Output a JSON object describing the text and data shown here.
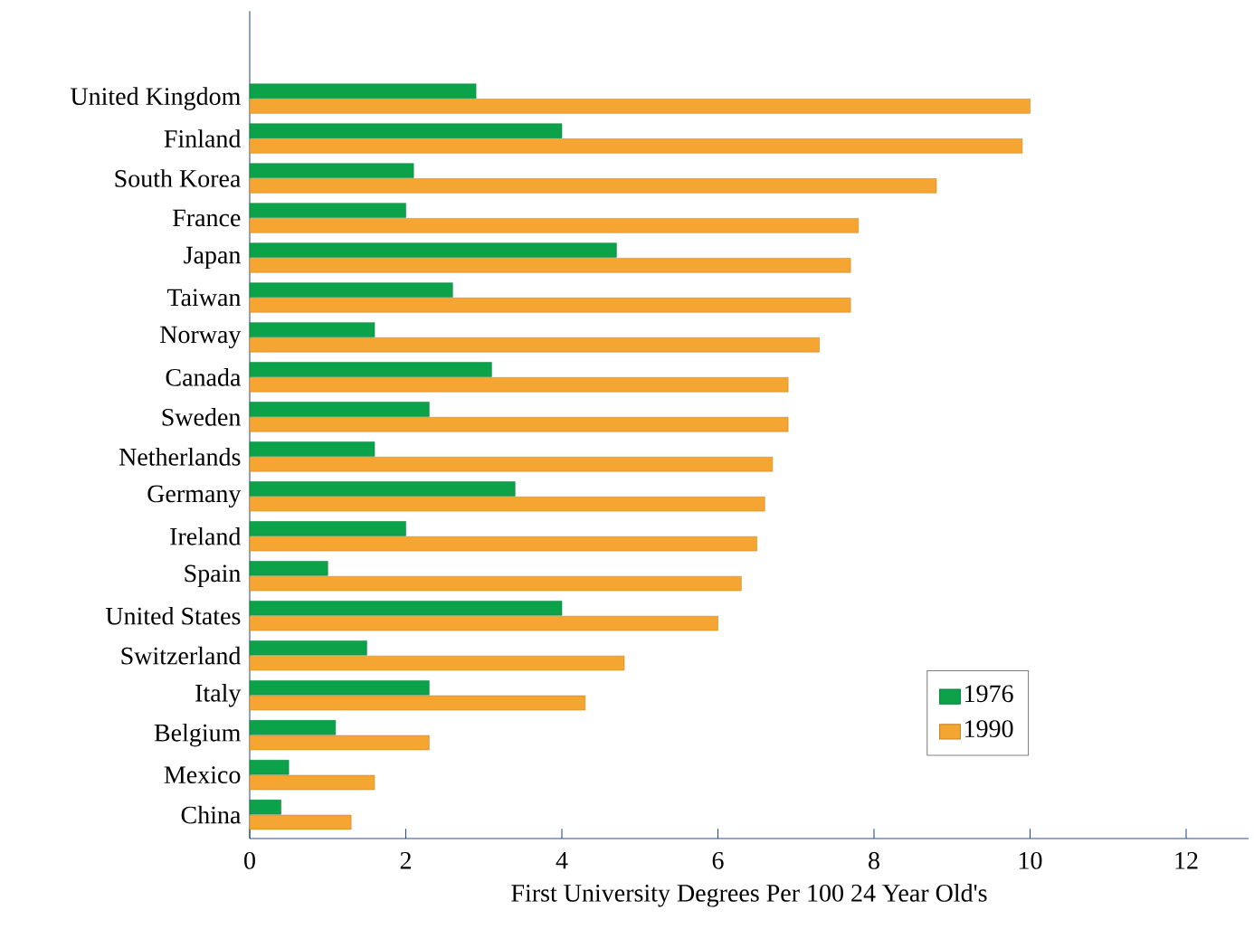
{
  "chart_data": {
    "type": "bar",
    "orientation": "horizontal",
    "xlabel": "First University Degrees Per 100 24 Year Old's",
    "categories": [
      "United Kingdom",
      "Finland",
      "South Korea",
      "France",
      "Japan",
      "Taiwan",
      "Norway",
      "Canada",
      "Sweden",
      "Netherlands",
      "Germany",
      "Ireland",
      "Spain",
      "United States",
      "Switzerland",
      "Italy",
      "Belgium",
      "Mexico",
      "China"
    ],
    "series": [
      {
        "name": "1976",
        "color": "#0ca24a",
        "values": [
          2.9,
          4.0,
          2.1,
          2.0,
          4.7,
          2.6,
          1.6,
          3.1,
          2.3,
          1.6,
          3.4,
          2.0,
          1.0,
          4.0,
          1.5,
          2.3,
          1.1,
          0.5,
          0.4
        ]
      },
      {
        "name": "1990",
        "color": "#f4a532",
        "values": [
          10.0,
          9.9,
          8.8,
          7.8,
          7.7,
          7.7,
          7.3,
          6.9,
          6.9,
          6.7,
          6.6,
          6.5,
          6.3,
          6.0,
          4.8,
          4.3,
          2.3,
          1.6,
          1.3
        ]
      }
    ],
    "xlim": [
      0,
      12.8
    ],
    "xticks": [
      0,
      2,
      4,
      6,
      8,
      10,
      12
    ],
    "grid": false,
    "legend": "bottom right"
  }
}
